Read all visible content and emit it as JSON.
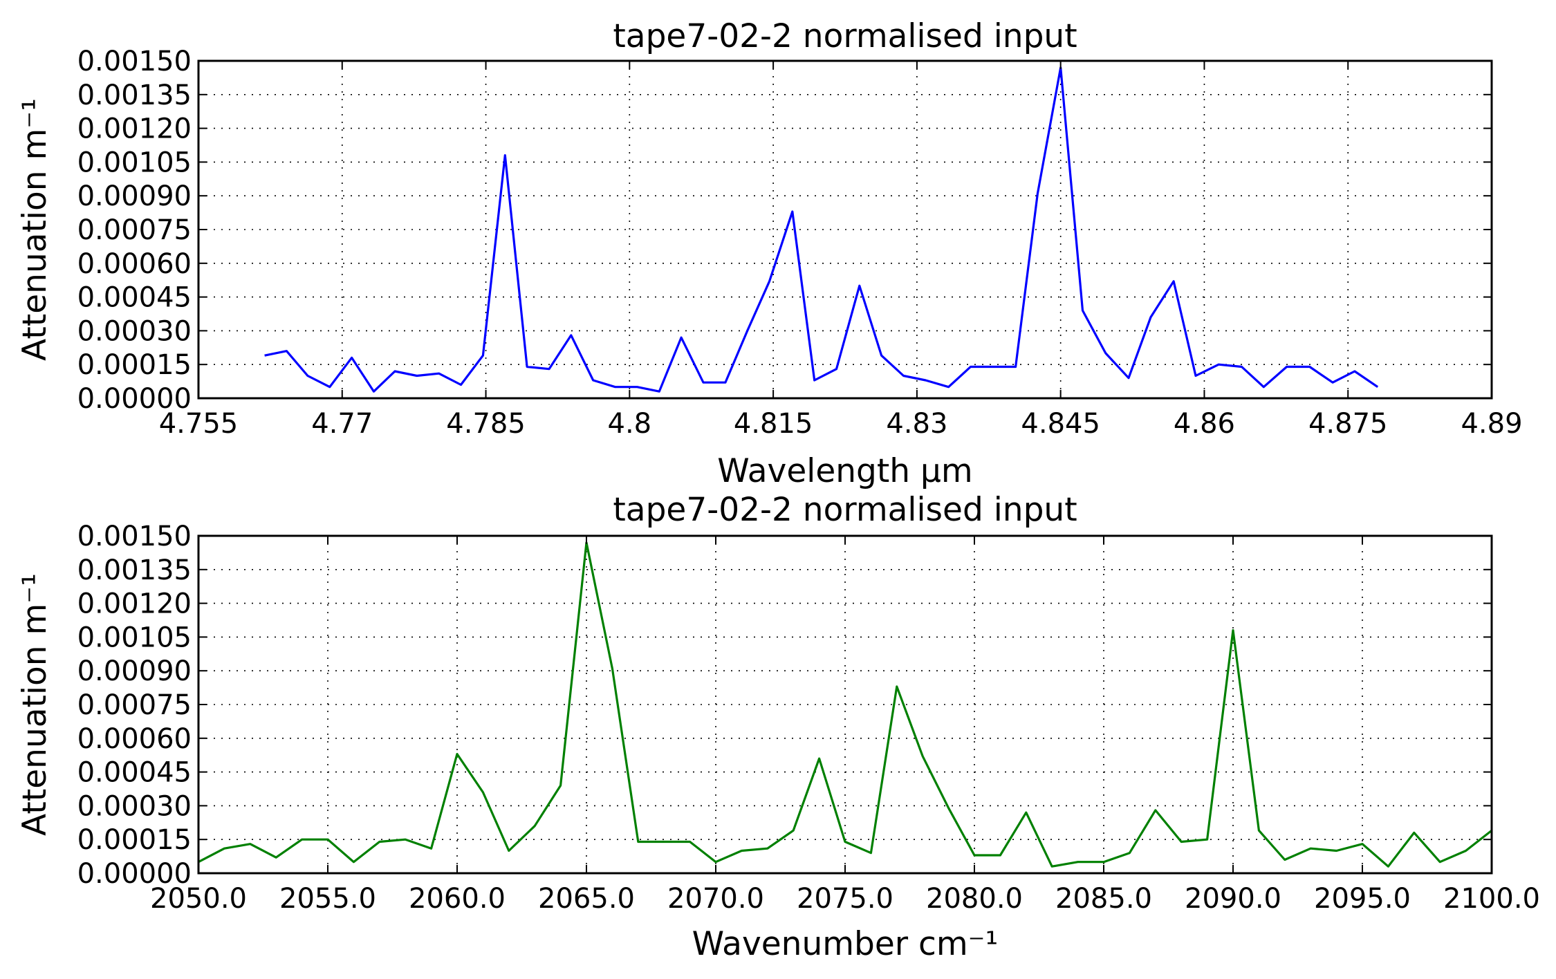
{
  "chart_data": [
    {
      "type": "line",
      "title": "tape7-02-2 normalised input",
      "xlabel": "Wavelength μm",
      "ylabel": "Attenuation m⁻¹",
      "xlim": [
        4.755,
        4.89
      ],
      "ylim": [
        0.0,
        0.0015
      ],
      "xticks": [
        "4.755",
        "4.77",
        "4.785",
        "4.8",
        "4.815",
        "4.83",
        "4.845",
        "4.86",
        "4.875",
        "4.89"
      ],
      "yticks": [
        "0.00000",
        "0.00015",
        "0.00030",
        "0.00045",
        "0.00060",
        "0.00075",
        "0.00090",
        "0.00105",
        "0.00120",
        "0.00135",
        "0.00150"
      ],
      "grid": true,
      "series": [
        {
          "color": "#0000ff",
          "x": [
            4.7619,
            4.7642,
            4.7664,
            4.7687,
            4.771,
            4.7733,
            4.7755,
            4.7778,
            4.7801,
            4.7824,
            4.7847,
            4.787,
            4.7893,
            4.7916,
            4.7939,
            4.7962,
            4.7985,
            4.8008,
            4.8031,
            4.8054,
            4.8077,
            4.81,
            4.8123,
            4.8146,
            4.817,
            4.8193,
            4.8216,
            4.824,
            4.8263,
            4.8286,
            4.8309,
            4.8333,
            4.8356,
            4.8379,
            4.8403,
            4.8426,
            4.845,
            4.8473,
            4.8497,
            4.8521,
            4.8544,
            4.8568,
            4.8591,
            4.8615,
            4.8639,
            4.8662,
            4.8686,
            4.871,
            4.8734,
            4.8757,
            4.8781
          ],
          "y": [
            0.00019,
            0.00021,
            0.0001,
            5e-05,
            0.00018,
            3e-05,
            0.00012,
            0.0001,
            0.00011,
            6e-05,
            0.00019,
            0.00108,
            0.00014,
            0.00013,
            0.00028,
            8e-05,
            5e-05,
            5e-05,
            3e-05,
            0.00027,
            7e-05,
            7e-05,
            0.0003,
            0.00052,
            0.00083,
            8e-05,
            0.00013,
            0.0005,
            0.00019,
            0.0001,
            8e-05,
            5e-05,
            0.00014,
            0.00014,
            0.00014,
            0.00091,
            0.00147,
            0.00039,
            0.0002,
            9e-05,
            0.00036,
            0.00052,
            0.0001,
            0.00015,
            0.00014,
            5e-05,
            0.00014,
            0.00014,
            7e-05,
            0.00012,
            5e-05
          ]
        }
      ]
    },
    {
      "type": "line",
      "title": "tape7-02-2 normalised input",
      "xlabel": "Wavenumber cm⁻¹",
      "ylabel": "Attenuation m⁻¹",
      "xlim": [
        2050.0,
        2100.0
      ],
      "ylim": [
        0.0,
        0.0015
      ],
      "xticks": [
        "2050.0",
        "2055.0",
        "2060.0",
        "2065.0",
        "2070.0",
        "2075.0",
        "2080.0",
        "2085.0",
        "2090.0",
        "2095.0",
        "2100.0"
      ],
      "yticks": [
        "0.00000",
        "0.00015",
        "0.00030",
        "0.00045",
        "0.00060",
        "0.00075",
        "0.00090",
        "0.00105",
        "0.00120",
        "0.00135",
        "0.00150"
      ],
      "grid": true,
      "series": [
        {
          "color": "#008000",
          "x": [
            2050,
            2051,
            2052,
            2053,
            2054,
            2055,
            2056,
            2057,
            2058,
            2059,
            2060,
            2061,
            2062,
            2063,
            2064,
            2065,
            2066,
            2067,
            2068,
            2069,
            2070,
            2071,
            2072,
            2073,
            2074,
            2075,
            2076,
            2077,
            2078,
            2079,
            2080,
            2081,
            2082,
            2083,
            2084,
            2085,
            2086,
            2087,
            2088,
            2089,
            2090,
            2091,
            2092,
            2093,
            2094,
            2095,
            2096,
            2097,
            2098,
            2099,
            2100
          ],
          "y": [
            5e-05,
            0.00011,
            0.00013,
            7e-05,
            0.00015,
            0.00015,
            5e-05,
            0.00014,
            0.00015,
            0.00011,
            0.00053,
            0.00036,
            0.0001,
            0.00021,
            0.00039,
            0.00147,
            0.00091,
            0.00014,
            0.00014,
            0.00014,
            5e-05,
            0.0001,
            0.00011,
            0.00019,
            0.00051,
            0.00014,
            9e-05,
            0.00083,
            0.00052,
            0.00029,
            8e-05,
            8e-05,
            0.00027,
            3e-05,
            5e-05,
            5e-05,
            9e-05,
            0.00028,
            0.00014,
            0.00015,
            0.00108,
            0.00019,
            6e-05,
            0.00011,
            0.0001,
            0.00013,
            3e-05,
            0.00018,
            5e-05,
            0.0001,
            0.00019
          ]
        }
      ]
    }
  ]
}
